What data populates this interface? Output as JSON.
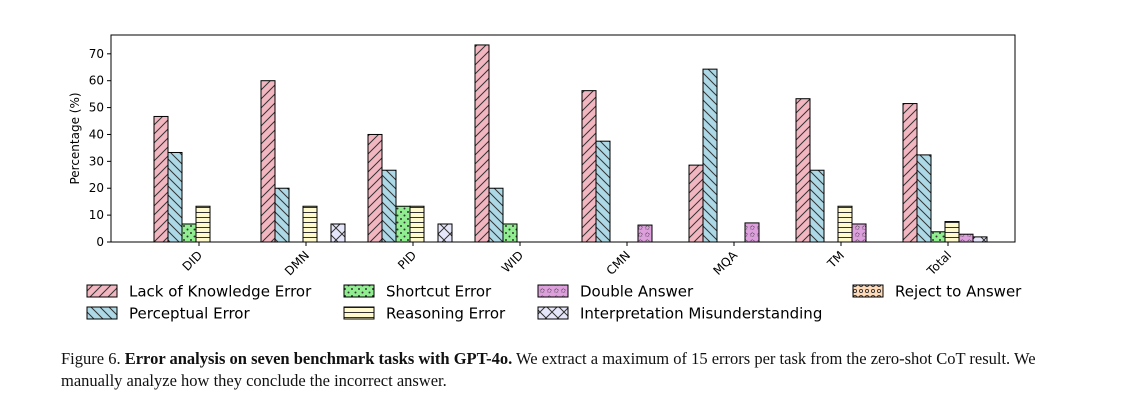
{
  "chart_data": {
    "type": "bar",
    "title": "",
    "xlabel": "",
    "ylabel": "Percentage (%)",
    "ylim": [
      0,
      77
    ],
    "yticks": [
      0,
      10,
      20,
      30,
      40,
      50,
      60,
      70
    ],
    "grid": false,
    "categories": [
      "DID",
      "DMN",
      "PID",
      "WID",
      "CMN",
      "MQA",
      "TM",
      "Total"
    ],
    "series": [
      {
        "name": "Lack of Knowledge Error",
        "fill": "#f2b6c0",
        "pattern": "diag",
        "values": [
          46.7,
          60.0,
          40.0,
          73.3,
          56.3,
          28.6,
          53.3,
          51.5
        ]
      },
      {
        "name": "Perceptual Error",
        "fill": "#add8e6",
        "pattern": "backdiag",
        "values": [
          33.3,
          20.0,
          26.7,
          20.0,
          37.5,
          64.3,
          26.7,
          32.4
        ]
      },
      {
        "name": "Shortcut Error",
        "fill": "#90ee90",
        "pattern": "dots",
        "values": [
          6.7,
          0,
          13.3,
          6.7,
          0,
          0,
          0,
          3.8
        ]
      },
      {
        "name": "Reasoning Error",
        "fill": "#fffacd",
        "pattern": "hlines",
        "values": [
          13.3,
          13.3,
          13.3,
          0,
          0,
          0,
          13.3,
          7.6
        ]
      },
      {
        "name": "Double Answer",
        "fill": "#dda0dd",
        "pattern": "stars",
        "values": [
          0,
          0,
          0,
          0,
          6.3,
          7.1,
          6.7,
          2.9
        ]
      },
      {
        "name": "Interpretation Misunderstanding",
        "fill": "#e6e6fa",
        "pattern": "cross",
        "values": [
          0,
          6.7,
          6.7,
          0,
          0,
          0,
          0,
          1.9
        ]
      },
      {
        "name": "Reject to Answer",
        "fill": "#ffdab9",
        "pattern": "circles",
        "values": [
          0,
          0,
          0,
          0,
          0,
          0,
          0,
          0
        ]
      }
    ],
    "legend_position": "bottom"
  },
  "caption": {
    "label": "Figure 6.",
    "bold": "Error analysis on seven benchmark tasks with GPT-4o.",
    "text": "We extract a maximum of 15 errors per task from the zero-shot CoT result. We manually analyze how they conclude the incorrect answer."
  }
}
